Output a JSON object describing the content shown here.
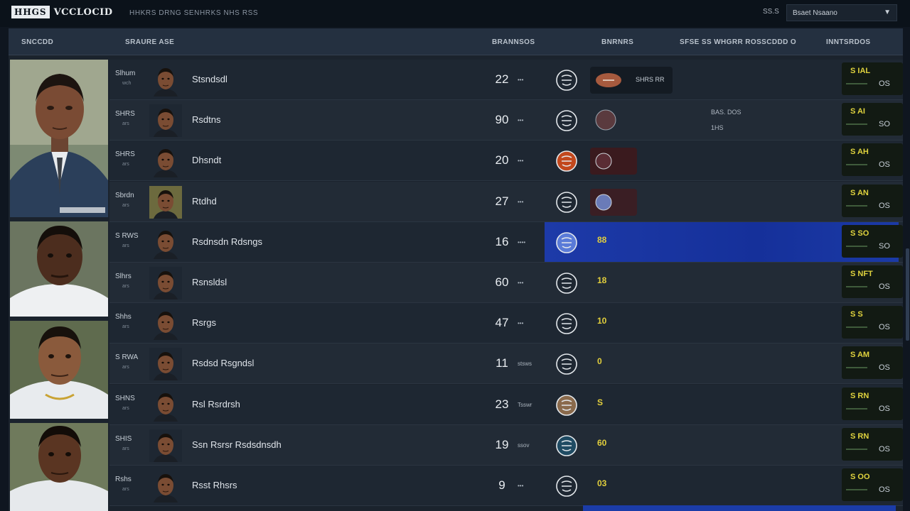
{
  "topbar": {
    "logo_box": "HHGS",
    "logo_word": "VCCLOCID",
    "subtitle": "HHKRS DRNG SENHRKS NHS RSS",
    "num": "SS.S",
    "select_value": "Bsaet Nsaano"
  },
  "header": {
    "col1": "SNCCDD",
    "col2": "SRAURE ASE",
    "col3": "BRANNSOS",
    "col4": "BNRNRS",
    "col5": "SFSE SS WHGRR ROSSCDDD O",
    "col6": "INNTSRDOS"
  },
  "rows": [
    {
      "code": "Slhum",
      "code_sub": "wch",
      "name": "Stsndsdl",
      "num": "22",
      "tag": "•••",
      "card_text": "SHRS RR",
      "val": "",
      "note": "",
      "rating_top": "S IAL",
      "rating_bot": "OS"
    },
    {
      "code": "SHRS",
      "code_sub": "ars",
      "name": "Rsdtns",
      "num": "90",
      "tag": "•••",
      "card_text": "",
      "val": "",
      "note": "BAS. DOS",
      "note2": "1HS",
      "rating_top": "S AI",
      "rating_bot": "SO"
    },
    {
      "code": "SHRS",
      "code_sub": "ars",
      "name": "Dhsndt",
      "num": "20",
      "tag": "•••",
      "card_text": "",
      "val": "",
      "note": "",
      "rating_top": "S AH",
      "rating_bot": "OS"
    },
    {
      "code": "Sbrdn",
      "code_sub": "ars",
      "name": "Rtdhd",
      "num": "27",
      "tag": "•••",
      "card_text": "",
      "val": "",
      "note": "",
      "rating_top": "S AN",
      "rating_bot": "OS"
    },
    {
      "code": "S RWS",
      "code_sub": "ars",
      "name": "Rsdnsdn Rdsngs",
      "num": "16",
      "tag": "••••",
      "card_text": "",
      "val": "88",
      "note": "",
      "rating_top": "S SO",
      "rating_bot": "SO"
    },
    {
      "code": "Slhrs",
      "code_sub": "ars",
      "name": "Rsnsldsl",
      "num": "60",
      "tag": "•••",
      "card_text": "",
      "val": "18",
      "note": "",
      "rating_top": "S NFT",
      "rating_bot": "OS"
    },
    {
      "code": "Shhs",
      "code_sub": "ars",
      "name": "Rsrgs",
      "num": "47",
      "tag": "•••",
      "card_text": "",
      "val": "10",
      "note": "",
      "rating_top": "S S",
      "rating_bot": "OS"
    },
    {
      "code": "S RWA",
      "code_sub": "ars",
      "name": "Rsdsd Rsgndsl",
      "num": "11",
      "tag": "stsws",
      "card_text": "",
      "val": "0",
      "note": "",
      "rating_top": "S AM",
      "rating_bot": "OS"
    },
    {
      "code": "SHNS",
      "code_sub": "ars",
      "name": "Rsl Rsrdrsh",
      "num": "23",
      "tag": "Tsswr",
      "card_text": "",
      "val": "S",
      "note": "",
      "rating_top": "S RN",
      "rating_bot": "OS"
    },
    {
      "code": "SHIS",
      "code_sub": "ars",
      "name": "Ssn Rsrsr Rsdsdnsdh",
      "num": "19",
      "tag": "ssov",
      "card_text": "",
      "val": "60",
      "note": "",
      "rating_top": "S RN",
      "rating_bot": "OS"
    },
    {
      "code": "Rshs",
      "code_sub": "ars",
      "name": "Rsst Rhsrs",
      "num": "9",
      "tag": "•••",
      "card_text": "",
      "val": "03",
      "note": "",
      "rating_top": "S OO",
      "rating_bot": "OS"
    }
  ],
  "colors": {
    "selected": "#1d3aa8",
    "value_yellow": "#e2cf3c",
    "panel": "#1b232d"
  }
}
